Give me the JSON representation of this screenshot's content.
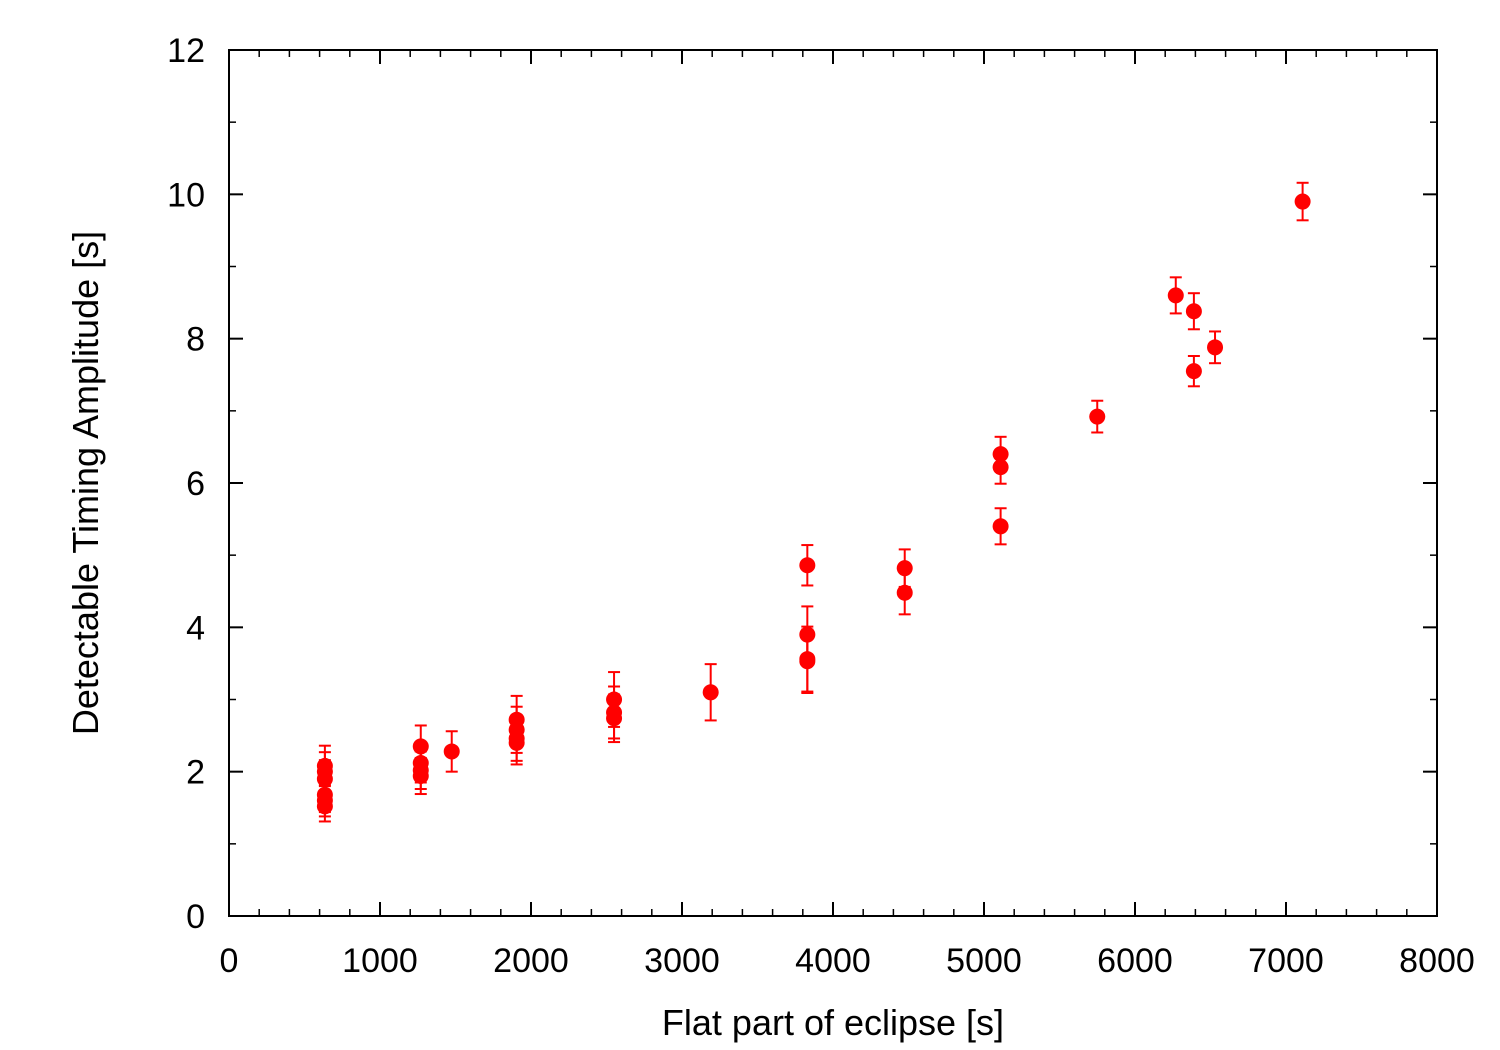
{
  "chart_data": {
    "type": "scatter",
    "title": "",
    "xlabel": "Flat part of eclipse [s]",
    "ylabel": "Detectable Timing Amplitude [s]",
    "xlim": [
      0,
      8000
    ],
    "ylim": [
      0,
      12
    ],
    "x_ticks": [
      0,
      1000,
      2000,
      3000,
      4000,
      5000,
      6000,
      7000,
      8000
    ],
    "y_ticks": [
      0,
      2,
      4,
      6,
      8,
      10,
      12
    ],
    "x_tick_labels": [
      "0",
      "1000",
      "2000",
      "3000",
      "4000",
      "5000",
      "6000",
      "7000",
      "8000"
    ],
    "y_tick_labels": [
      "0",
      "2",
      "4",
      "6",
      "8",
      "10",
      "12"
    ],
    "grid": false,
    "legend": "none",
    "colors": {
      "points": "#ff0000",
      "errorbars": "#ff0000",
      "axes": "#000000"
    },
    "series": [
      {
        "points": [
          {
            "x": 635,
            "y": 2.08,
            "err": 0.28
          },
          {
            "x": 635,
            "y": 2.0,
            "err": 0.27
          },
          {
            "x": 635,
            "y": 1.9,
            "err": 0.26
          },
          {
            "x": 635,
            "y": 1.68,
            "err": 0.24
          },
          {
            "x": 635,
            "y": 1.6,
            "err": 0.22
          },
          {
            "x": 635,
            "y": 1.52,
            "err": 0.21
          },
          {
            "x": 1270,
            "y": 2.35,
            "err": 0.29
          },
          {
            "x": 1270,
            "y": 2.12,
            "err": 0.27
          },
          {
            "x": 1270,
            "y": 2.02,
            "err": 0.26
          },
          {
            "x": 1270,
            "y": 1.94,
            "err": 0.25
          },
          {
            "x": 1475,
            "y": 2.28,
            "err": 0.28
          },
          {
            "x": 1905,
            "y": 2.72,
            "err": 0.33
          },
          {
            "x": 1905,
            "y": 2.58,
            "err": 0.32
          },
          {
            "x": 1905,
            "y": 2.46,
            "err": 0.31
          },
          {
            "x": 1905,
            "y": 2.4,
            "err": 0.3
          },
          {
            "x": 2550,
            "y": 3.0,
            "err": 0.38
          },
          {
            "x": 2550,
            "y": 2.82,
            "err": 0.36
          },
          {
            "x": 2550,
            "y": 2.74,
            "err": 0.33
          },
          {
            "x": 3190,
            "y": 3.1,
            "err": 0.39
          },
          {
            "x": 3830,
            "y": 4.86,
            "err": 0.28
          },
          {
            "x": 3830,
            "y": 3.9,
            "err": 0.39
          },
          {
            "x": 3830,
            "y": 3.56,
            "err": 0.45
          },
          {
            "x": 3830,
            "y": 3.53,
            "err": 0.44
          },
          {
            "x": 4475,
            "y": 4.82,
            "err": 0.26
          },
          {
            "x": 4475,
            "y": 4.48,
            "err": 0.3
          },
          {
            "x": 5110,
            "y": 6.4,
            "err": 0.24
          },
          {
            "x": 5110,
            "y": 6.22,
            "err": 0.23
          },
          {
            "x": 5110,
            "y": 5.4,
            "err": 0.25
          },
          {
            "x": 5750,
            "y": 6.92,
            "err": 0.22
          },
          {
            "x": 6270,
            "y": 8.6,
            "err": 0.25
          },
          {
            "x": 6390,
            "y": 8.38,
            "err": 0.25
          },
          {
            "x": 6390,
            "y": 7.55,
            "err": 0.21
          },
          {
            "x": 6530,
            "y": 7.88,
            "err": 0.22
          },
          {
            "x": 7110,
            "y": 9.9,
            "err": 0.26
          }
        ]
      }
    ]
  }
}
